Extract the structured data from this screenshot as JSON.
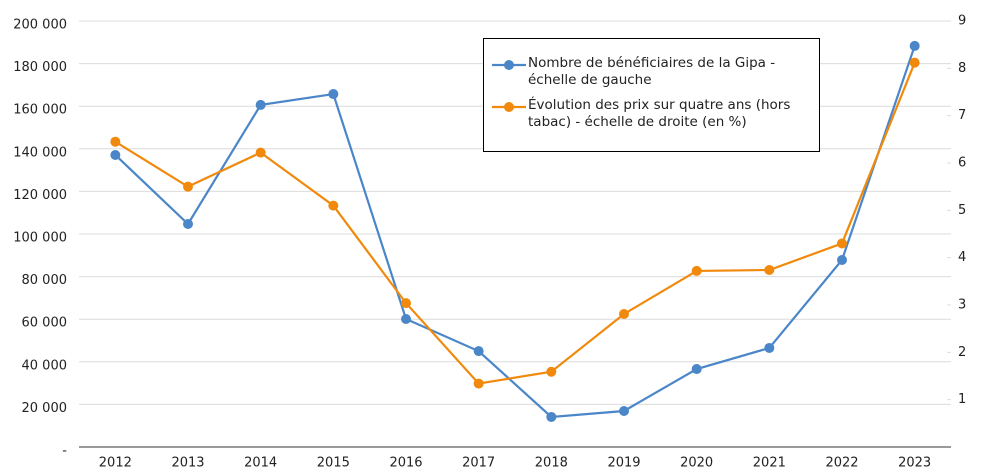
{
  "chart_data": {
    "type": "line",
    "categories": [
      "2012",
      "2013",
      "2014",
      "2015",
      "2016",
      "2017",
      "2018",
      "2019",
      "2020",
      "2021",
      "2022",
      "2023"
    ],
    "series": [
      {
        "name": "Nombre de bénéficiaires de la Gipa - échelle de gauche",
        "color": "#4a86c8",
        "values": [
          137100,
          104700,
          160600,
          165700,
          60100,
          45000,
          14100,
          16900,
          36600,
          46500,
          87800,
          188300
        ]
      },
      {
        "name": "Évolution des prix sur quatre ans (hors tabac) - échelle de droite (en %)",
        "color": "#f18a0c",
        "axis": "y2",
        "values": [
          6.45,
          5.5,
          6.22,
          5.1,
          3.04,
          1.34,
          1.59,
          2.81,
          3.72,
          3.74,
          4.3,
          8.12
        ]
      }
    ],
    "ylim": [
      0,
      200000
    ],
    "yticks": [
      {
        "value": 0,
        "label": "-"
      },
      {
        "value": 20000,
        "label": "20 000"
      },
      {
        "value": 40000,
        "label": "40 000"
      },
      {
        "value": 60000,
        "label": "60 000"
      },
      {
        "value": 80000,
        "label": "80 000"
      },
      {
        "value": 100000,
        "label": "100 000"
      },
      {
        "value": 120000,
        "label": "120 000"
      },
      {
        "value": 140000,
        "label": "140 000"
      },
      {
        "value": 160000,
        "label": "160 000"
      },
      {
        "value": 180000,
        "label": "180 000"
      },
      {
        "value": 200000,
        "label": "200 000"
      }
    ],
    "y2lim": [
      0,
      9
    ],
    "y2ticks": [
      1,
      2,
      3,
      4,
      5,
      6,
      7,
      8,
      9
    ],
    "grid": true
  }
}
